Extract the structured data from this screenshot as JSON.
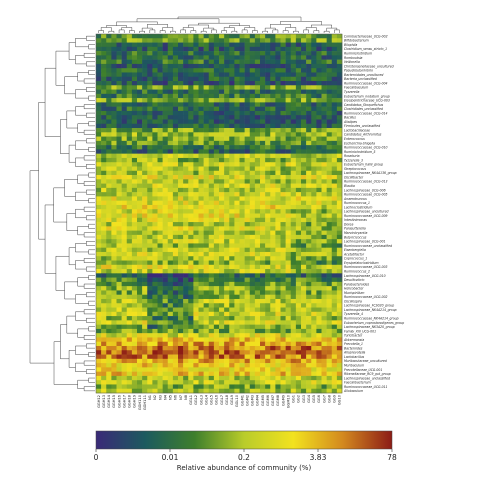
{
  "chart_data": {
    "type": "heatmap",
    "title": "",
    "colorbar": {
      "label": "Relative abundance of community (%)",
      "tick_labels": [
        "0",
        "0.01",
        "0.2",
        "3.83",
        "78"
      ],
      "colors": [
        "#3a2a78",
        "#1c5a5e",
        "#3e7f2c",
        "#b9cc2a",
        "#f2e21f",
        "#d3891f",
        "#8c1c16"
      ]
    },
    "rows": [
      "Coriobacteriaceae_UCG-002",
      "Bifidobacterium",
      "Bilophila",
      "Clostridium_sensu_stricto_1",
      "Ruminiclostridium",
      "Romboutsia",
      "Veillonella",
      "Christensenellaceae_uncultured",
      "Pseudobutyrivibrio",
      "Bacteroidales_uncultured",
      "Bacteria_unclassified",
      "Ruminococcaceae_UCG-004",
      "Faecalibaculum",
      "Tyzzerella",
      "Eubacterium_nodatum_group",
      "Erysipelotrichaceae_UCG-003",
      "Candidatus_Stoquefichus",
      "Clostridiales_unclassified",
      "Ruminococcaceae_UCG-014",
      "Bacillus",
      "Alistipes",
      "Firmicutes_unclassified",
      "Lactobacillaceae",
      "Candidatus_Arthromitus",
      "Enterococcus",
      "Escherichia-Shigella",
      "Ruminococcaceae_UCG-010",
      "Ruminiclostridium_5",
      "Roseburia",
      "Tyzzerella_3",
      "Eubacterium_hallii_group",
      "Streptococcus",
      "Lachnospiraceae_NK4A136_group",
      "Oscillibacter",
      "Ruminococcaceae_UCG-013",
      "Blautia",
      "Lachnospiraceae_UCG-006",
      "Ruminococcaceae_UCG-005",
      "Anaerotruncus",
      "Ruminococcus_1",
      "Lachnoclostridium",
      "Lachnospiraceae_uncultured",
      "Ruminococcaceae_UCG-009",
      "Intestinimonas",
      "Dorea",
      "Parasutterella",
      "Marvinbryantia",
      "Butyricicoccus",
      "Lachnospiraceae_UCG-001",
      "Ruminococcaceae_unclassified",
      "Eisenbergiella",
      "Acetatifactor",
      "Coprococcus_1",
      "Erysipelatoclostridium",
      "Ruminococcaceae_UCG-003",
      "Ruminococcus_2",
      "Lachnospiraceae_UCG-010",
      "Desulfovibrio",
      "Parabacteroides",
      "Helicobacter",
      "Mucispirillum",
      "Ruminococcaceae_UCG-002",
      "Oscillospira",
      "Lachnospiraceae_FCS020_group",
      "Lachnospiraceae_NK4A214_group",
      "Tyzzerella_4",
      "Ruminococcaceae_NK4A214_group",
      "Eubacterium_coprostanoligenes_group",
      "Lachnospiraceae_NK3A20_group",
      "Family_XIII_UCG-001",
      "Turicibacter",
      "Akkermansia",
      "Prevotella_1",
      "Bacteroides",
      "Alloprevotella",
      "Lactobacillus",
      "Muribaculaceae_uncultured",
      "Muribaculum",
      "Prevotellaceae_UCG-001",
      "Rikenellaceae_RC9_gut_group",
      "Lachnospiraceae_unclassified",
      "Faecalibacterium",
      "Ruminococcaceae_UCG-011",
      "Allobaculum"
    ],
    "columns": [
      "GGH12",
      "GGH13",
      "GGH14",
      "GGH15",
      "GGH16",
      "GGH17",
      "GGH18",
      "GGH19",
      "GGH110",
      "GGH111",
      "N1",
      "N2",
      "N3",
      "N4",
      "N5",
      "N6",
      "N7",
      "N8",
      "GGL1",
      "GGL2",
      "GGL3",
      "GGL4",
      "GGL5",
      "GGL6",
      "GGL7",
      "GGL8",
      "GGL9",
      "GGL10",
      "GGM1",
      "GGM2",
      "GGM3",
      "GGM4",
      "GGM5",
      "GGM6",
      "GGM7",
      "GGM8",
      "GGM9",
      "GGM10",
      "GG1",
      "GG2",
      "GG3",
      "GG4",
      "GG5",
      "GG6",
      "GG7",
      "GG8",
      "GG9",
      "GG10"
    ],
    "row_levels": [
      2.2,
      2.5,
      1.2,
      1.0,
      1.5,
      1.3,
      1.6,
      1.0,
      1.4,
      1.2,
      1.2,
      1.0,
      2.4,
      1.5,
      1.7,
      2.6,
      1.3,
      1.4,
      1.2,
      1.1,
      1.0,
      1.2,
      2.5,
      2.8,
      2.5,
      2.3,
      1.6,
      1.2,
      3.1,
      2.8,
      3.3,
      3.0,
      3.0,
      3.6,
      3.0,
      3.4,
      3.1,
      3.3,
      3.6,
      3.5,
      3.8,
      3.4,
      3.7,
      3.4,
      3.2,
      3.5,
      3.1,
      3.2,
      3.3,
      2.9,
      3.2,
      3.4,
      3.0,
      2.7,
      3.6,
      3.3,
      1.3,
      1.9,
      2.2,
      2.8,
      2.5,
      2.7,
      3.2,
      3.0,
      3.1,
      3.4,
      2.9,
      3.5,
      2.7,
      2.5,
      3.5,
      4.2,
      4.6,
      5.1,
      5.3,
      5.0,
      4.5,
      4.1,
      3.9,
      4.2,
      3.1,
      3.3,
      2.6,
      3.0
    ],
    "row_dendrogram_order": [
      0,
      1,
      2,
      3,
      4,
      5,
      6,
      7,
      8,
      9,
      10,
      11,
      12,
      13,
      14,
      15,
      16,
      17,
      18,
      19,
      20,
      21,
      22,
      23,
      24,
      25,
      26,
      27,
      28,
      29,
      30,
      31,
      32,
      33,
      34,
      35,
      36,
      37,
      38,
      39,
      40,
      41,
      42,
      43,
      44,
      45,
      46,
      47,
      48,
      49,
      50,
      51,
      52,
      53,
      54,
      55,
      56,
      57,
      58,
      59,
      60,
      61,
      62,
      63,
      64,
      65,
      66,
      67,
      68,
      69,
      70,
      71,
      72,
      73,
      74,
      75,
      76,
      77,
      78,
      79,
      80,
      81,
      82,
      83
    ]
  }
}
